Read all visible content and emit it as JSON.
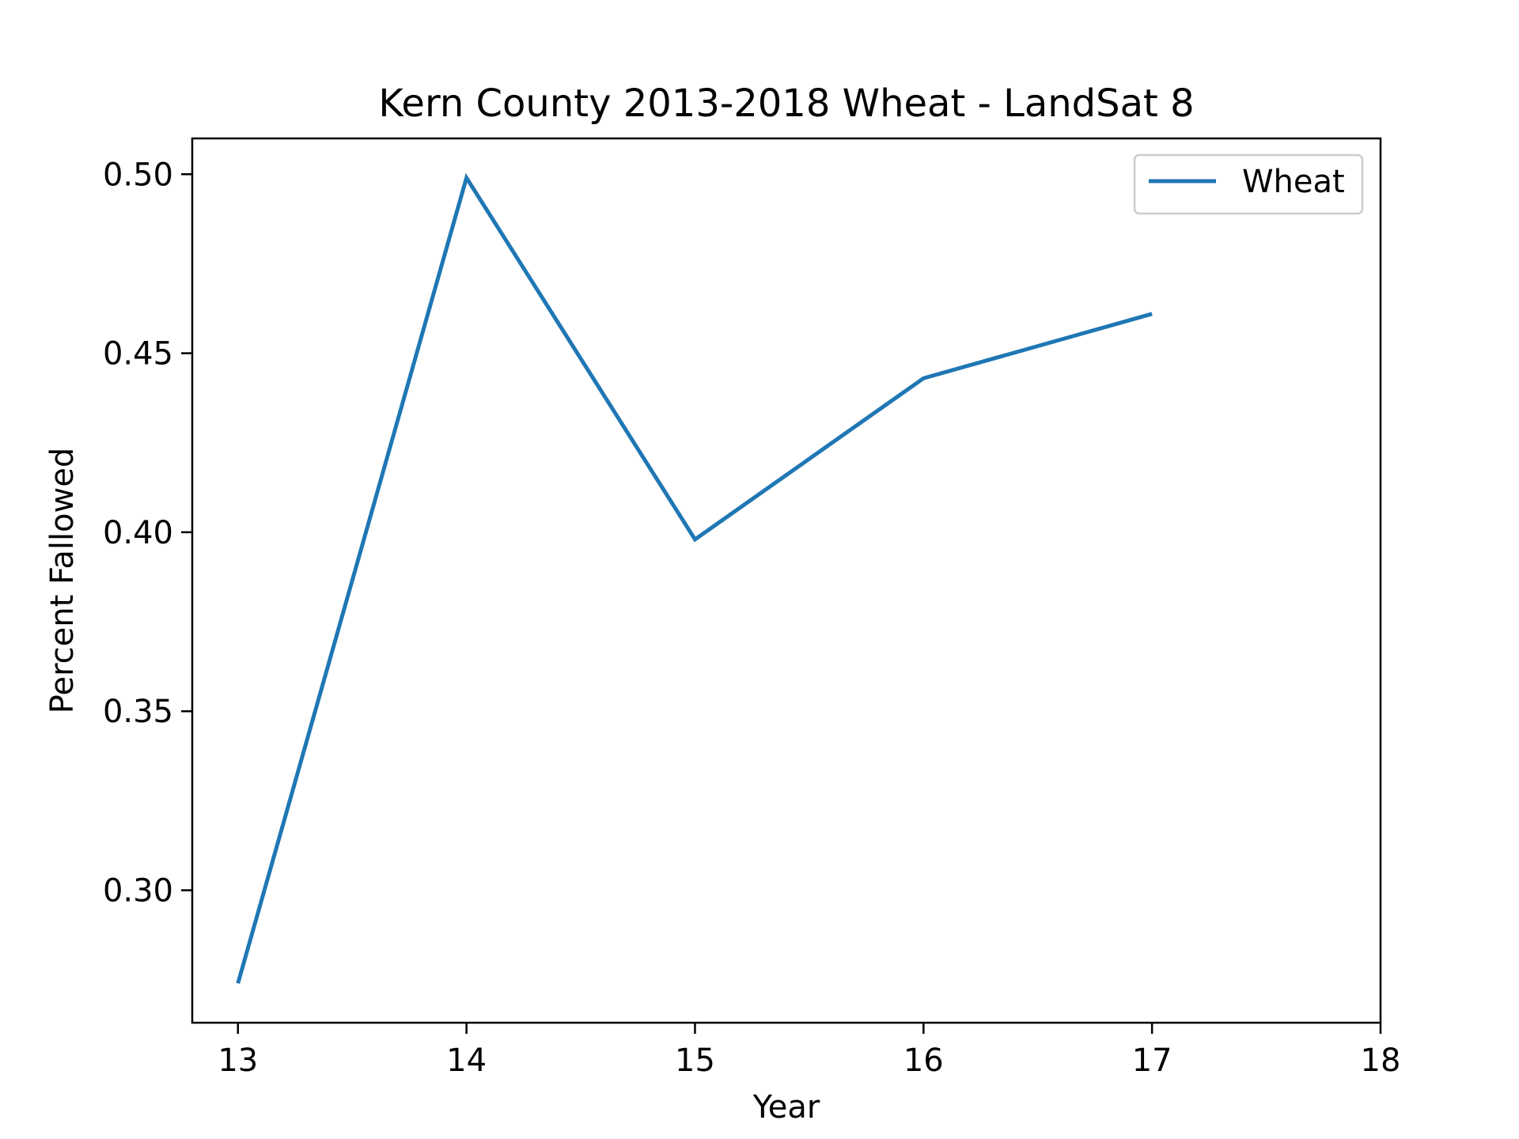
{
  "chart_data": {
    "type": "line",
    "title": "Kern County 2013-2018 Wheat - LandSat 8",
    "xlabel": "Year",
    "ylabel": "Percent Fallowed",
    "xlim": [
      12.8,
      18
    ],
    "ylim": [
      0.263,
      0.51
    ],
    "x_ticks": [
      13,
      14,
      15,
      16,
      17,
      18
    ],
    "x_tick_labels": [
      "13",
      "14",
      "15",
      "16",
      "17",
      "18"
    ],
    "y_ticks": [
      0.3,
      0.35,
      0.4,
      0.45,
      0.5
    ],
    "y_tick_labels": [
      "0.30",
      "0.35",
      "0.40",
      "0.45",
      "0.50"
    ],
    "grid": false,
    "legend": "top-right",
    "series": [
      {
        "name": "Wheat",
        "color": "#1f77b4",
        "x": [
          13,
          14,
          15,
          16,
          17
        ],
        "y": [
          0.274,
          0.499,
          0.398,
          0.443,
          0.461
        ]
      }
    ]
  }
}
